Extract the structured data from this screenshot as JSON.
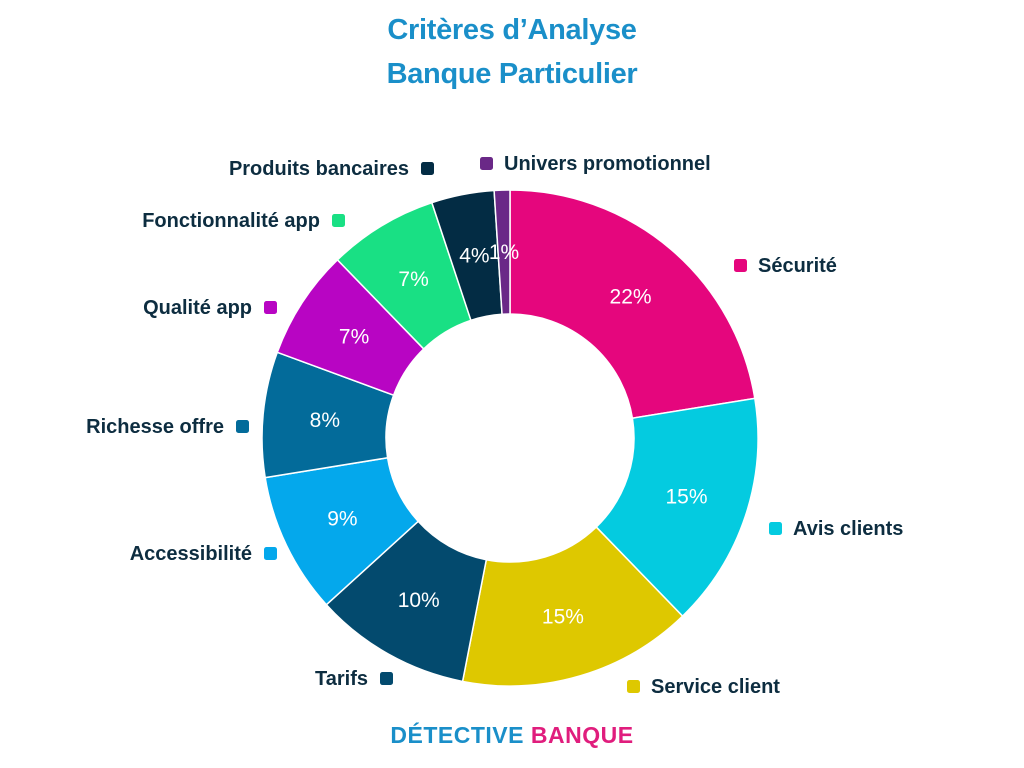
{
  "chart_data": {
    "type": "pie",
    "style": "donut",
    "title": "Critères d’Analyse",
    "subtitle": "Banque Particulier",
    "categories": [
      "Sécurité",
      "Avis clients",
      "Service client",
      "Tarifs",
      "Accessibilité",
      "Richesse offre",
      "Qualité app",
      "Fonctionnalité app",
      "Produits bancaires",
      "Univers promotionnel"
    ],
    "values": [
      22,
      15,
      15,
      10,
      9,
      8,
      7,
      7,
      4,
      1
    ],
    "value_labels": [
      "22%",
      "15%",
      "15%",
      "10%",
      "9%",
      "8%",
      "7%",
      "7%",
      "4%",
      "1%"
    ],
    "colors": [
      "#e5067d",
      "#04cbe0",
      "#dec800",
      "#034a6e",
      "#04a8ec",
      "#036b9a",
      "#b805c3",
      "#19e084",
      "#032c44",
      "#6a2887"
    ],
    "legend_placement": "around"
  },
  "branding": {
    "logo_part1": "DÉTECTIVE",
    "logo_part2": "BANQUE"
  }
}
